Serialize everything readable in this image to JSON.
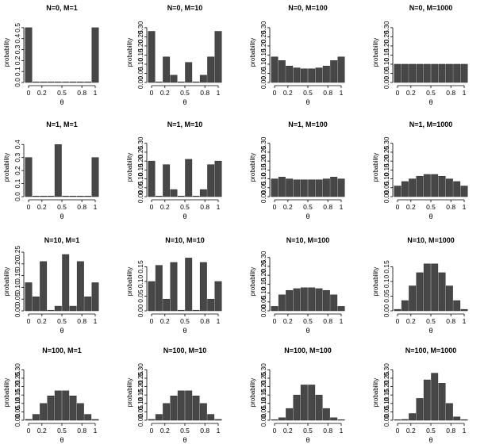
{
  "figure": {
    "bar_color": "#474747",
    "x_tick_labels": [
      "0",
      "0.2",
      "0.5",
      "0.8",
      "1"
    ],
    "x_tick_positions": [
      0,
      0.2,
      0.5,
      0.8,
      1
    ],
    "x_label": "θ",
    "y_label": "probability"
  },
  "chart_data": [
    {
      "type": "bar",
      "title": "N=0, M=1",
      "xlabel": "θ",
      "ylabel": "probability",
      "ylim": [
        0,
        0.55
      ],
      "yticks": [
        0,
        0.1,
        0.2,
        0.3,
        0.4,
        0.5
      ],
      "ytick_labels": [
        "0.0",
        "0.1",
        "0.2",
        "0.3",
        "0.4",
        "0.5"
      ],
      "x": [
        0,
        0.111,
        0.222,
        0.333,
        0.444,
        0.556,
        0.667,
        0.778,
        0.889,
        1
      ],
      "values": [
        0.5,
        0.002,
        0.002,
        0.002,
        0.002,
        0.002,
        0.002,
        0.002,
        0.002,
        0.5
      ]
    },
    {
      "type": "bar",
      "title": "N=0, M=10",
      "xlabel": "θ",
      "ylabel": "probability",
      "ylim": [
        0,
        0.33
      ],
      "yticks": [
        0,
        0.05,
        0.1,
        0.15,
        0.2,
        0.25,
        0.3
      ],
      "ytick_labels": [
        "0.00",
        "0.05",
        "0.10",
        "0.15",
        "0.20",
        "0.25",
        "0.30"
      ],
      "x": [
        0,
        0.111,
        0.222,
        0.333,
        0.444,
        0.556,
        0.667,
        0.778,
        0.889,
        1
      ],
      "values": [
        0.28,
        0.002,
        0.14,
        0.04,
        0.002,
        0.11,
        0.002,
        0.04,
        0.14,
        0.28
      ]
    },
    {
      "type": "bar",
      "title": "N=0, M=100",
      "xlabel": "θ",
      "ylabel": "probability",
      "ylim": [
        0,
        0.33
      ],
      "yticks": [
        0,
        0.05,
        0.1,
        0.15,
        0.2,
        0.25,
        0.3
      ],
      "ytick_labels": [
        "0.00",
        "0.05",
        "0.10",
        "0.15",
        "0.20",
        "0.25",
        "0.30"
      ],
      "x": [
        0,
        0.111,
        0.222,
        0.333,
        0.444,
        0.556,
        0.667,
        0.778,
        0.889,
        1
      ],
      "values": [
        0.14,
        0.12,
        0.09,
        0.08,
        0.075,
        0.075,
        0.08,
        0.09,
        0.12,
        0.14
      ]
    },
    {
      "type": "bar",
      "title": "N=0, M=1000",
      "xlabel": "θ",
      "ylabel": "probability",
      "ylim": [
        0,
        0.33
      ],
      "yticks": [
        0,
        0.05,
        0.1,
        0.15,
        0.2,
        0.25,
        0.3
      ],
      "ytick_labels": [
        "0.00",
        "0.05",
        "0.10",
        "0.15",
        "0.20",
        "0.25",
        "0.30"
      ],
      "x": [
        0,
        0.111,
        0.222,
        0.333,
        0.444,
        0.556,
        0.667,
        0.778,
        0.889,
        1
      ],
      "values": [
        0.1,
        0.1,
        0.1,
        0.1,
        0.1,
        0.1,
        0.1,
        0.1,
        0.1,
        0.1
      ]
    },
    {
      "type": "bar",
      "title": "N=1, M=1",
      "xlabel": "θ",
      "ylabel": "probability",
      "ylim": [
        0,
        0.45
      ],
      "yticks": [
        0,
        0.1,
        0.2,
        0.3,
        0.4
      ],
      "ytick_labels": [
        "0.0",
        "0.1",
        "0.2",
        "0.3",
        "0.4"
      ],
      "x": [
        0,
        0.111,
        0.222,
        0.333,
        0.444,
        0.556,
        0.667,
        0.778,
        0.889,
        1
      ],
      "values": [
        0.3,
        0.002,
        0.002,
        0.002,
        0.4,
        0.002,
        0.002,
        0.002,
        0.002,
        0.3
      ]
    },
    {
      "type": "bar",
      "title": "N=1, M=10",
      "xlabel": "θ",
      "ylabel": "probability",
      "ylim": [
        0,
        0.33
      ],
      "yticks": [
        0,
        0.05,
        0.1,
        0.15,
        0.2,
        0.25,
        0.3
      ],
      "ytick_labels": [
        "0.00",
        "0.05",
        "0.10",
        "0.15",
        "0.20",
        "0.25",
        "0.30"
      ],
      "x": [
        0,
        0.111,
        0.222,
        0.333,
        0.444,
        0.556,
        0.667,
        0.778,
        0.889,
        1
      ],
      "values": [
        0.2,
        0.002,
        0.18,
        0.04,
        0.002,
        0.21,
        0.002,
        0.04,
        0.18,
        0.2
      ]
    },
    {
      "type": "bar",
      "title": "N=1, M=100",
      "xlabel": "θ",
      "ylabel": "probability",
      "ylim": [
        0,
        0.33
      ],
      "yticks": [
        0,
        0.05,
        0.1,
        0.15,
        0.2,
        0.25,
        0.3
      ],
      "ytick_labels": [
        "0.00",
        "0.05",
        "0.10",
        "0.15",
        "0.20",
        "0.25",
        "0.30"
      ],
      "x": [
        0,
        0.111,
        0.222,
        0.333,
        0.444,
        0.556,
        0.667,
        0.778,
        0.889,
        1
      ],
      "values": [
        0.1,
        0.11,
        0.1,
        0.095,
        0.095,
        0.095,
        0.095,
        0.1,
        0.11,
        0.1
      ]
    },
    {
      "type": "bar",
      "title": "N=1, M=1000",
      "xlabel": "θ",
      "ylabel": "probability",
      "ylim": [
        0,
        0.33
      ],
      "yticks": [
        0,
        0.05,
        0.1,
        0.15,
        0.2,
        0.25,
        0.3
      ],
      "ytick_labels": [
        "0.00",
        "0.05",
        "0.10",
        "0.15",
        "0.20",
        "0.25",
        "0.30"
      ],
      "x": [
        0,
        0.111,
        0.222,
        0.333,
        0.444,
        0.556,
        0.667,
        0.778,
        0.889,
        1
      ],
      "values": [
        0.06,
        0.085,
        0.1,
        0.115,
        0.125,
        0.125,
        0.115,
        0.1,
        0.085,
        0.06
      ]
    },
    {
      "type": "bar",
      "title": "N=10, M=1",
      "xlabel": "θ",
      "ylabel": "probability",
      "ylim": [
        0,
        0.25
      ],
      "yticks": [
        0,
        0.05,
        0.1,
        0.15,
        0.2,
        0.25
      ],
      "ytick_labels": [
        "0.00",
        "0.05",
        "0.10",
        "0.15",
        "0.20",
        "0.25"
      ],
      "x": [
        0,
        0.111,
        0.222,
        0.333,
        0.444,
        0.556,
        0.667,
        0.778,
        0.889,
        1
      ],
      "values": [
        0.12,
        0.06,
        0.21,
        0.002,
        0.02,
        0.24,
        0.02,
        0.21,
        0.06,
        0.12
      ]
    },
    {
      "type": "bar",
      "title": "N=10, M=10",
      "xlabel": "θ",
      "ylabel": "probability",
      "ylim": [
        0,
        0.2
      ],
      "yticks": [
        0,
        0.05,
        0.1,
        0.15
      ],
      "ytick_labels": [
        "0.00",
        "0.05",
        "0.10",
        "0.15"
      ],
      "x": [
        0,
        0.111,
        0.222,
        0.333,
        0.444,
        0.556,
        0.667,
        0.778,
        0.889,
        1
      ],
      "values": [
        0.1,
        0.155,
        0.04,
        0.165,
        0.002,
        0.18,
        0.002,
        0.165,
        0.04,
        0.1
      ]
    },
    {
      "type": "bar",
      "title": "N=10, M=100",
      "xlabel": "θ",
      "ylabel": "probability",
      "ylim": [
        0,
        0.33
      ],
      "yticks": [
        0,
        0.05,
        0.1,
        0.15,
        0.2,
        0.25,
        0.3
      ],
      "ytick_labels": [
        "0.00",
        "0.05",
        "0.10",
        "0.15",
        "0.20",
        "0.25",
        "0.30"
      ],
      "x": [
        0,
        0.111,
        0.222,
        0.333,
        0.444,
        0.556,
        0.667,
        0.778,
        0.889,
        1
      ],
      "values": [
        0.025,
        0.09,
        0.115,
        0.125,
        0.13,
        0.13,
        0.125,
        0.115,
        0.09,
        0.025
      ]
    },
    {
      "type": "bar",
      "title": "N=10, M=1000",
      "xlabel": "θ",
      "ylabel": "probability",
      "ylim": [
        0,
        0.2
      ],
      "yticks": [
        0,
        0.05,
        0.1,
        0.15
      ],
      "ytick_labels": [
        "0.00",
        "0.05",
        "0.10",
        "0.15"
      ],
      "x": [
        0,
        0.111,
        0.222,
        0.333,
        0.444,
        0.556,
        0.667,
        0.778,
        0.889,
        1
      ],
      "values": [
        0.005,
        0.035,
        0.085,
        0.13,
        0.16,
        0.16,
        0.13,
        0.085,
        0.035,
        0.005
      ]
    },
    {
      "type": "bar",
      "title": "N=100, M=1",
      "xlabel": "θ",
      "ylabel": "probability",
      "ylim": [
        0,
        0.33
      ],
      "yticks": [
        0,
        0.05,
        0.1,
        0.15,
        0.2,
        0.25,
        0.3
      ],
      "ytick_labels": [
        "0.00",
        "0.05",
        "0.10",
        "0.15",
        "0.20",
        "0.25",
        "0.30"
      ],
      "x": [
        0,
        0.111,
        0.222,
        0.333,
        0.444,
        0.556,
        0.667,
        0.778,
        0.889,
        1
      ],
      "values": [
        0.005,
        0.035,
        0.1,
        0.145,
        0.175,
        0.175,
        0.145,
        0.1,
        0.035,
        0.005
      ]
    },
    {
      "type": "bar",
      "title": "N=100, M=10",
      "xlabel": "θ",
      "ylabel": "probability",
      "ylim": [
        0,
        0.33
      ],
      "yticks": [
        0,
        0.05,
        0.1,
        0.15,
        0.2,
        0.25,
        0.3
      ],
      "ytick_labels": [
        "0.00",
        "0.05",
        "0.10",
        "0.15",
        "0.20",
        "0.25",
        "0.30"
      ],
      "x": [
        0,
        0.111,
        0.222,
        0.333,
        0.444,
        0.556,
        0.667,
        0.778,
        0.889,
        1
      ],
      "values": [
        0.005,
        0.035,
        0.1,
        0.145,
        0.175,
        0.175,
        0.145,
        0.1,
        0.035,
        0.005
      ]
    },
    {
      "type": "bar",
      "title": "N=100, M=100",
      "xlabel": "θ",
      "ylabel": "probability",
      "ylim": [
        0,
        0.33
      ],
      "yticks": [
        0,
        0.05,
        0.1,
        0.15,
        0.2,
        0.25,
        0.3
      ],
      "ytick_labels": [
        "0.00",
        "0.05",
        "0.10",
        "0.15",
        "0.20",
        "0.25",
        "0.30"
      ],
      "x": [
        0,
        0.111,
        0.222,
        0.333,
        0.444,
        0.556,
        0.667,
        0.778,
        0.889,
        1
      ],
      "values": [
        0.002,
        0.015,
        0.07,
        0.15,
        0.21,
        0.21,
        0.15,
        0.07,
        0.015,
        0.002
      ]
    },
    {
      "type": "bar",
      "title": "N=100, M=1000",
      "xlabel": "θ",
      "ylabel": "probability",
      "ylim": [
        0,
        0.33
      ],
      "yticks": [
        0,
        0.05,
        0.1,
        0.15,
        0.2,
        0.25,
        0.3
      ],
      "ytick_labels": [
        "0.00",
        "0.05",
        "0.10",
        "0.15",
        "0.20",
        "0.25",
        "0.30"
      ],
      "x": [
        0,
        0.111,
        0.222,
        0.333,
        0.444,
        0.556,
        0.667,
        0.778,
        0.889,
        1
      ],
      "values": [
        0.001,
        0.005,
        0.04,
        0.13,
        0.24,
        0.28,
        0.22,
        0.1,
        0.02,
        0.004
      ]
    }
  ]
}
